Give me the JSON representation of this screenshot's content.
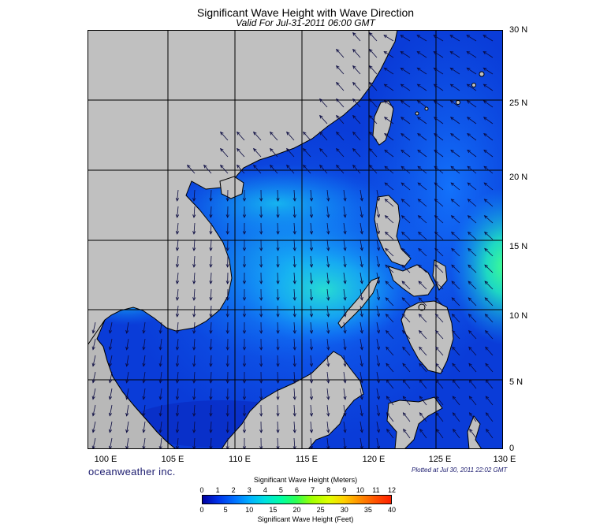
{
  "header": {
    "title": "Significant Wave Height with Wave Direction",
    "valid": "Valid For Jul-31-2011 06:00 GMT"
  },
  "map": {
    "lat_labels": [
      "30 N",
      "25 N",
      "20 N",
      "15 N",
      "10 N",
      "5 N",
      "0"
    ],
    "lon_labels": [
      "100 E",
      "105 E",
      "110 E",
      "115 E",
      "120 E",
      "125 E",
      "130 E"
    ],
    "extent": {
      "lon_min": 99,
      "lon_max": 130,
      "lat_min": 0,
      "lat_max": 30
    },
    "colors": {
      "land": "#c0c0c0",
      "ocean": "#0a3cd8",
      "grid": "#000000",
      "arrows": "#0a0a40"
    }
  },
  "branding": {
    "logo": "oceanweather inc.",
    "plotted": "Plotted at Jul 30, 2011 22:02 GMT"
  },
  "colorbar": {
    "meters_title": "Significant Wave Height (Meters)",
    "feet_title": "Significant Wave Height (Feet)",
    "meters_ticks": [
      "0",
      "1",
      "2",
      "3",
      "4",
      "5",
      "6",
      "7",
      "8",
      "9",
      "10",
      "11",
      "12"
    ],
    "feet_ticks": [
      "0",
      "5",
      "10",
      "15",
      "20",
      "25",
      "30",
      "35",
      "40"
    ]
  }
}
